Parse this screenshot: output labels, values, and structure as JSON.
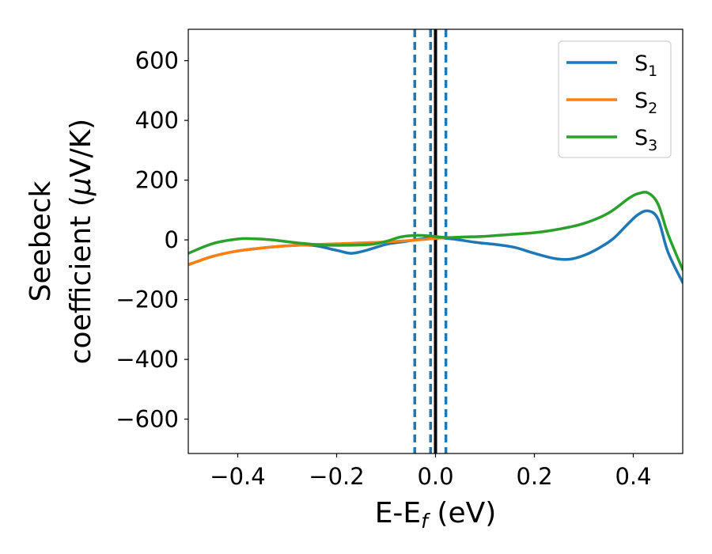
{
  "chart_data": {
    "type": "line",
    "xlabel": {
      "main": "E-E",
      "sub": "f",
      "unit": " (eV)"
    },
    "ylabel": {
      "line1": "Seebeck",
      "line2_pre": "coefficient  (",
      "mu": "μ",
      "line2_post": "V/K)"
    },
    "xlim": [
      -0.5,
      0.5
    ],
    "ylim": [
      -715,
      705
    ],
    "xticks": [
      -0.4,
      -0.2,
      0.0,
      0.2,
      0.4
    ],
    "xtick_labels": [
      "−0.4",
      "−0.2",
      "0.0",
      "0.2",
      "0.4"
    ],
    "yticks": [
      600,
      400,
      200,
      0,
      -200,
      -400,
      -600
    ],
    "ytick_labels": [
      "600",
      "400",
      "200",
      "0",
      "−200",
      "−400",
      "−600"
    ],
    "legend_position": "top-right",
    "series": [
      {
        "name": "S",
        "sub": "1",
        "color": "#1f77b4",
        "x": [
          -0.5,
          -0.45,
          -0.4,
          -0.35,
          -0.3,
          -0.25,
          -0.2,
          -0.17,
          -0.14,
          -0.1,
          -0.06,
          -0.03,
          0.0,
          0.04,
          0.08,
          0.12,
          0.16,
          0.2,
          0.24,
          0.27,
          0.3,
          0.33,
          0.36,
          0.39,
          0.41,
          0.43,
          0.45,
          0.47,
          0.5
        ],
        "y": [
          -83,
          -55,
          -37,
          -27,
          -20,
          -18,
          -35,
          -45,
          -35,
          -15,
          -5,
          3,
          8,
          2,
          -8,
          -15,
          -25,
          -45,
          -62,
          -65,
          -52,
          -28,
          5,
          55,
          85,
          97,
          70,
          -40,
          -143
        ]
      },
      {
        "name": "S",
        "sub": "2",
        "color": "#ff7f0e",
        "x": [
          -0.5,
          -0.45,
          -0.4,
          -0.35,
          -0.3,
          -0.25,
          -0.2,
          -0.15,
          -0.1,
          -0.05,
          -0.02,
          0.0,
          0.02
        ],
        "y": [
          -83,
          -55,
          -37,
          -27,
          -20,
          -16,
          -13,
          -10,
          -7,
          -2,
          2,
          5,
          7
        ]
      },
      {
        "name": "S",
        "sub": "3",
        "color": "#2ca02c",
        "x": [
          -0.5,
          -0.45,
          -0.4,
          -0.37,
          -0.33,
          -0.28,
          -0.23,
          -0.18,
          -0.13,
          -0.1,
          -0.07,
          -0.04,
          -0.01,
          0.02,
          0.06,
          0.1,
          0.15,
          0.2,
          0.25,
          0.3,
          0.35,
          0.39,
          0.41,
          0.43,
          0.45,
          0.47,
          0.5
        ],
        "y": [
          -45,
          -12,
          3,
          4,
          0,
          -10,
          -17,
          -18,
          -15,
          -5,
          10,
          15,
          13,
          8,
          10,
          12,
          18,
          24,
          36,
          55,
          90,
          138,
          155,
          157,
          120,
          20,
          -100
        ]
      }
    ],
    "vlines": [
      {
        "x": -0.042,
        "style": "dashed",
        "color": "#1f77b4"
      },
      {
        "x": -0.01,
        "style": "dashed",
        "color": "#1f77b4"
      },
      {
        "x": 0.021,
        "style": "dashed",
        "color": "#1f77b4"
      },
      {
        "x": 0.0,
        "style": "solid",
        "color": "#000000"
      }
    ]
  }
}
